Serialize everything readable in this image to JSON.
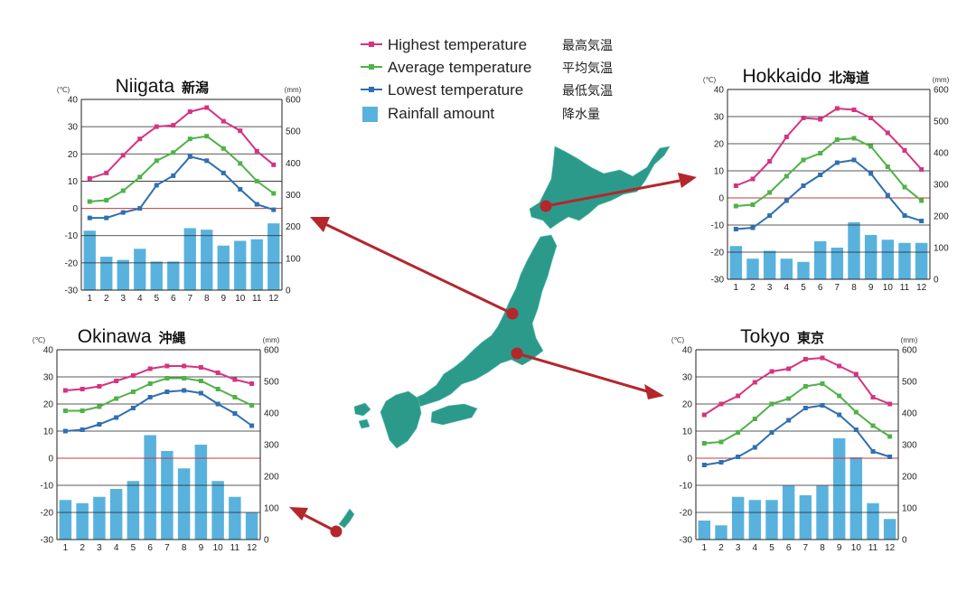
{
  "colors": {
    "highest": "#d6337f",
    "average": "#4fb248",
    "lowest": "#2f6fb1",
    "rainfall": "#59b2dd",
    "zero_line": "#c33b3b",
    "map_land": "#2c9a8a",
    "arrow": "#b3272d"
  },
  "legend": {
    "items": [
      {
        "key": "highest",
        "label": "Highest temperature",
        "jp": "最高気温"
      },
      {
        "key": "average",
        "label": "Average temperature",
        "jp": "平均気温"
      },
      {
        "key": "lowest",
        "label": "Lowest temperature",
        "jp": "最低気温"
      },
      {
        "key": "rainfall",
        "label": "Rainfall amount",
        "jp": "降水量"
      }
    ]
  },
  "chart_data": [
    {
      "type": "bar",
      "title": "Niigata",
      "title_jp": "新潟",
      "y_unit": "(℃)",
      "y2_unit": "(mm)",
      "ylim": [
        -30,
        40
      ],
      "y2lim": [
        0,
        600
      ],
      "yticks": [
        40,
        30,
        20,
        10,
        0,
        -10,
        -20,
        -30
      ],
      "y2ticks": [
        600,
        500,
        400,
        300,
        200,
        100,
        0
      ],
      "categories": [
        "1",
        "2",
        "3",
        "4",
        "5",
        "6",
        "7",
        "8",
        "9",
        "10",
        "11",
        "12"
      ],
      "rainfall": [
        187,
        105,
        95,
        130,
        90,
        90,
        195,
        190,
        140,
        155,
        160,
        210
      ],
      "highest": [
        11,
        13,
        19.5,
        25.5,
        30,
        30.5,
        35.5,
        37,
        32,
        28.5,
        21,
        16
      ],
      "average": [
        2.5,
        3,
        6.5,
        11.5,
        17.5,
        20.5,
        25.5,
        26.5,
        22,
        16.5,
        10,
        5.5
      ],
      "lowest": [
        -3.5,
        -3.5,
        -1.5,
        0,
        8.5,
        12,
        19,
        17.5,
        13,
        7,
        1.5,
        -0.5
      ]
    },
    {
      "type": "bar",
      "title": "Hokkaido",
      "title_jp": "北海道",
      "y_unit": "(℃)",
      "y2_unit": "(mm)",
      "ylim": [
        -30,
        40
      ],
      "y2lim": [
        0,
        600
      ],
      "yticks": [
        40,
        30,
        20,
        10,
        0,
        -10,
        -20,
        -30
      ],
      "y2ticks": [
        600,
        500,
        400,
        300,
        200,
        100,
        0
      ],
      "categories": [
        "1",
        "2",
        "3",
        "4",
        "5",
        "6",
        "7",
        "8",
        "9",
        "10",
        "11",
        "12"
      ],
      "rainfall": [
        105,
        65,
        90,
        65,
        55,
        120,
        100,
        180,
        140,
        125,
        115,
        115
      ],
      "highest": [
        4.5,
        7,
        13.5,
        22.5,
        29.5,
        29,
        33,
        32.5,
        29.5,
        24,
        17.5,
        10.5
      ],
      "average": [
        -3,
        -2.5,
        2,
        8,
        14,
        16.5,
        21.5,
        22,
        19,
        11.5,
        4,
        -1
      ],
      "lowest": [
        -11.5,
        -11,
        -6.5,
        -1,
        4.5,
        8.5,
        13,
        14,
        9,
        1,
        -6.5,
        -8.5
      ]
    },
    {
      "type": "bar",
      "title": "Okinawa",
      "title_jp": "沖縄",
      "y_unit": "(℃)",
      "y2_unit": "(mm)",
      "ylim": [
        -30,
        40
      ],
      "y2lim": [
        0,
        600
      ],
      "yticks": [
        40,
        30,
        20,
        10,
        0,
        -10,
        -20,
        -30
      ],
      "y2ticks": [
        600,
        500,
        400,
        300,
        200,
        100,
        0
      ],
      "categories": [
        "1",
        "2",
        "3",
        "4",
        "5",
        "6",
        "7",
        "8",
        "9",
        "10",
        "11",
        "12"
      ],
      "rainfall": [
        125,
        115,
        135,
        160,
        185,
        330,
        280,
        225,
        300,
        185,
        135,
        85
      ],
      "highest": [
        25,
        25.5,
        26.5,
        28.5,
        30.5,
        33,
        34,
        34,
        33.5,
        31.5,
        29,
        27.5
      ],
      "average": [
        17.5,
        17.5,
        19,
        22,
        24.5,
        27.5,
        29.5,
        29.5,
        28.5,
        25.5,
        22.5,
        19.5
      ],
      "lowest": [
        10,
        10.5,
        12.5,
        15,
        18.5,
        22.5,
        24.5,
        25,
        24,
        20,
        16.5,
        12
      ]
    },
    {
      "type": "bar",
      "title": "Tokyo",
      "title_jp": "東京",
      "y_unit": "(℃)",
      "y2_unit": "(mm)",
      "ylim": [
        -30,
        40
      ],
      "y2lim": [
        0,
        600
      ],
      "yticks": [
        40,
        30,
        20,
        10,
        0,
        -10,
        -20,
        -30
      ],
      "y2ticks": [
        600,
        500,
        400,
        300,
        200,
        100,
        0
      ],
      "categories": [
        "1",
        "2",
        "3",
        "4",
        "5",
        "6",
        "7",
        "8",
        "9",
        "10",
        "11",
        "12"
      ],
      "rainfall": [
        60,
        45,
        135,
        125,
        125,
        170,
        140,
        170,
        320,
        260,
        115,
        65
      ],
      "highest": [
        16,
        20,
        23,
        28,
        32,
        33,
        36.5,
        37,
        34,
        31,
        22.5,
        20
      ],
      "average": [
        5.5,
        6,
        9.5,
        14.5,
        20,
        22,
        26.5,
        27.5,
        23,
        17,
        12,
        8
      ],
      "lowest": [
        -2.5,
        -1.5,
        0.5,
        4,
        9.5,
        14,
        18.5,
        19.5,
        16,
        10.5,
        2.5,
        0.5
      ]
    }
  ]
}
